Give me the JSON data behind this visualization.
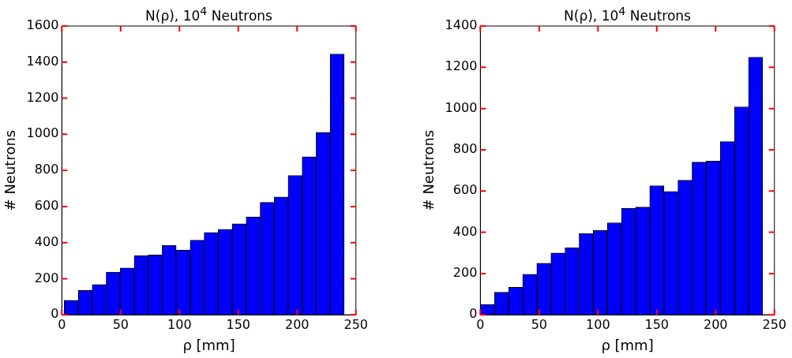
{
  "chart_data": [
    {
      "type": "histogram",
      "title": "N(ρ), 10$^{4}$  Neutrons",
      "xlabel": "ρ [mm]",
      "ylabel": "# Neutrons",
      "color": "#0000ff",
      "bins": [
        2,
        13.9,
        25.8,
        37.7,
        49.6,
        61.5,
        73.4,
        85.3,
        97.2,
        109.1,
        121,
        132.9,
        144.8,
        156.7,
        168.6,
        180.5,
        192.4,
        204.3,
        216.2,
        228.1,
        240
      ],
      "values": [
        80,
        135,
        168,
        236,
        259,
        327,
        332,
        384,
        359,
        413,
        456,
        474,
        504,
        542,
        623,
        653,
        772,
        876,
        1011,
        1445
      ],
      "xlim": [
        0,
        250
      ],
      "xticks": [
        0,
        50,
        100,
        150,
        200,
        250
      ],
      "ylim": [
        0,
        1600
      ],
      "yticks": [
        0,
        200,
        400,
        600,
        800,
        1000,
        1200,
        1400,
        1600
      ]
    },
    {
      "type": "histogram",
      "title": "N(ρ), 10$^{4}$  Neutrons",
      "xlabel": "ρ [mm]",
      "ylabel": "# Neutrons",
      "color": "#0000ff",
      "bins": [
        0,
        12,
        24,
        36,
        48,
        60,
        72,
        84,
        96,
        108,
        120,
        132,
        144,
        156,
        168,
        180,
        192,
        204,
        216,
        228,
        240
      ],
      "values": [
        50,
        109,
        133,
        196,
        250,
        300,
        325,
        393,
        409,
        446,
        517,
        522,
        626,
        598,
        652,
        740,
        745,
        840,
        1008,
        1249
      ],
      "xlim": [
        0,
        250
      ],
      "xticks": [
        0,
        50,
        100,
        150,
        200,
        250
      ],
      "ylim": [
        0,
        1400
      ],
      "yticks": [
        0,
        200,
        400,
        600,
        800,
        1000,
        1200,
        1400
      ]
    }
  ]
}
